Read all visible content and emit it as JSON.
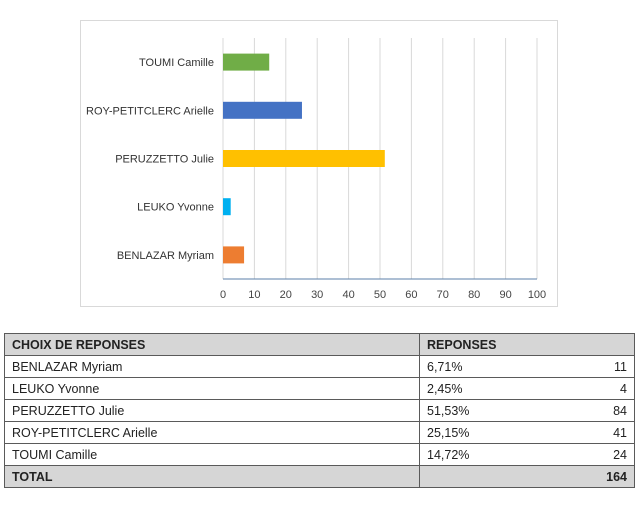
{
  "chart_data": {
    "type": "bar",
    "orientation": "horizontal",
    "categories": [
      "TOUMI Camille",
      "ROY-PETITCLERC Arielle",
      "PERUZZETTO Julie",
      "LEUKO Yvonne",
      "BENLAZAR Myriam"
    ],
    "values": [
      14.72,
      25.15,
      51.53,
      2.45,
      6.71
    ],
    "colors": [
      "#70ad47",
      "#4472c4",
      "#ffc000",
      "#00b0f0",
      "#ed7d31"
    ],
    "xlim": [
      0,
      100
    ],
    "xticks": [
      0,
      10,
      20,
      30,
      40,
      50,
      60,
      70,
      80,
      90,
      100
    ],
    "grid": true,
    "legend": "none"
  },
  "table": {
    "headers": [
      "CHOIX DE REPONSES",
      "REPONSES"
    ],
    "rows": [
      {
        "name": "BENLAZAR Myriam",
        "pct": "6,71%",
        "count": "11"
      },
      {
        "name": "LEUKO Yvonne",
        "pct": "2,45%",
        "count": "4"
      },
      {
        "name": "PERUZZETTO Julie",
        "pct": "51,53%",
        "count": "84"
      },
      {
        "name": "ROY-PETITCLERC Arielle",
        "pct": "25,15%",
        "count": "41"
      },
      {
        "name": "TOUMI Camille",
        "pct": "14,72%",
        "count": "24"
      }
    ],
    "total_label": "TOTAL",
    "total_count": "164"
  }
}
